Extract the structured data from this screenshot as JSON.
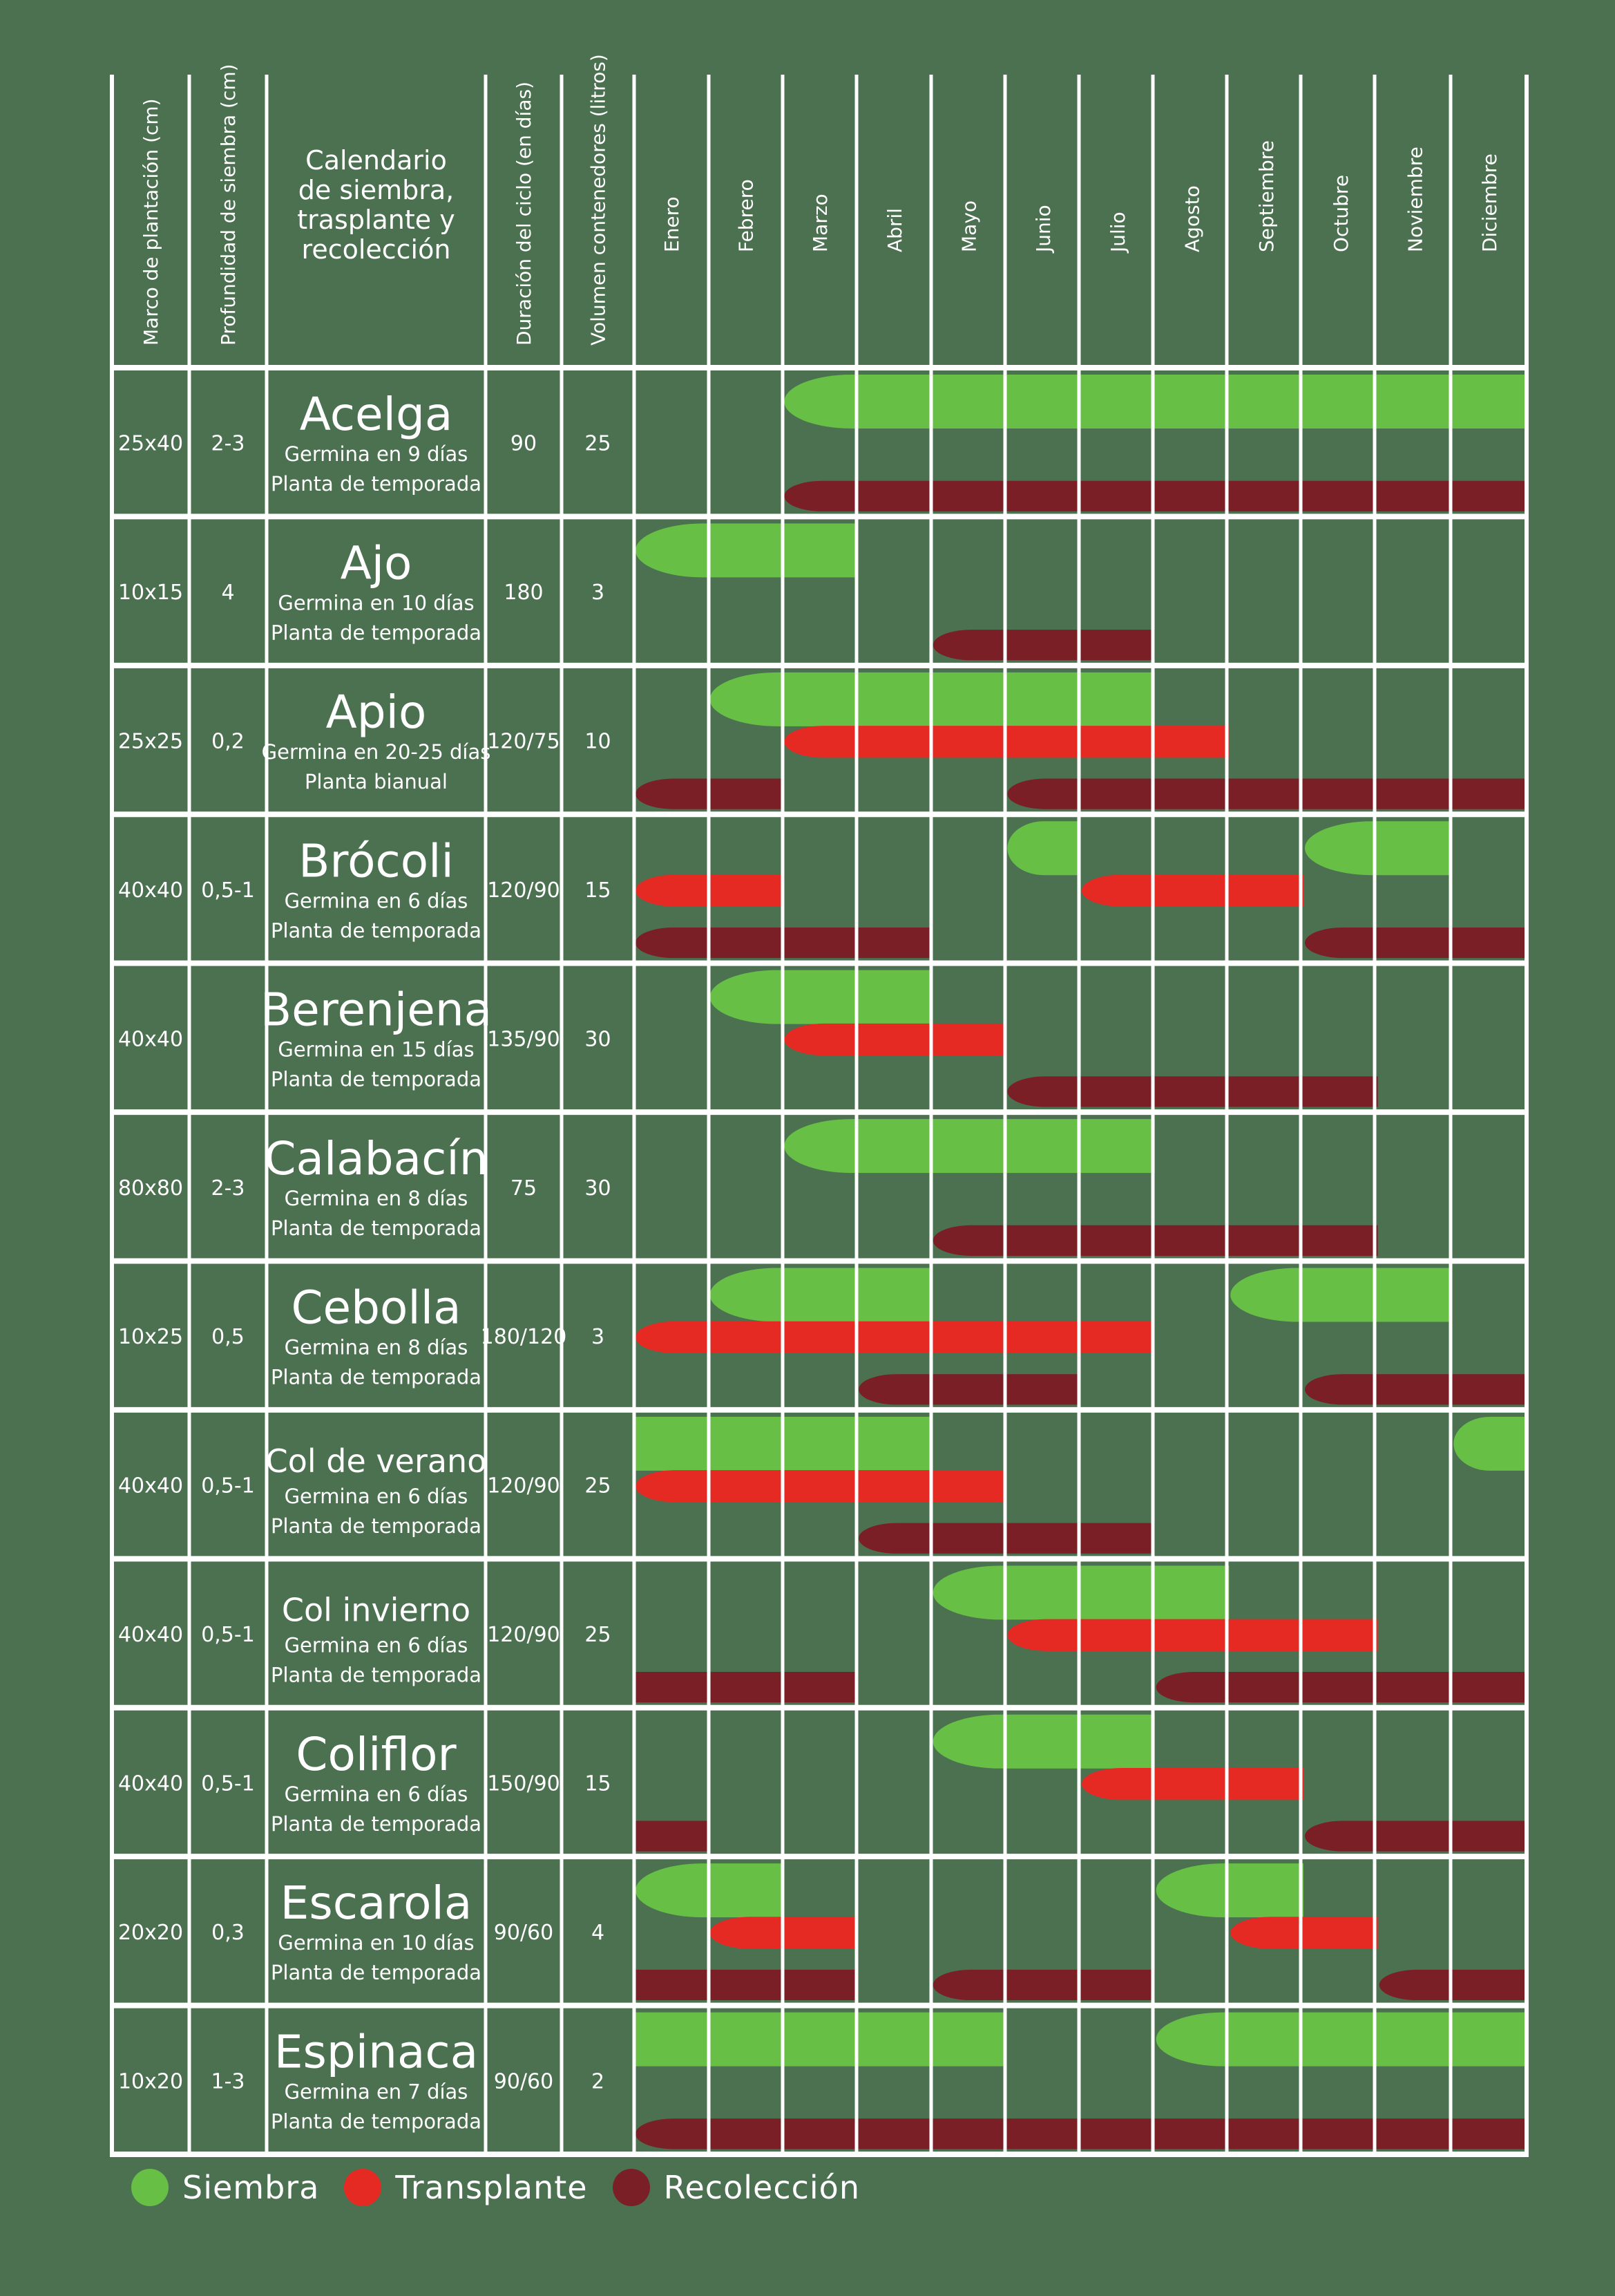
{
  "chart_data": {
    "type": "table",
    "title": "Calendario de siembra, trasplante y recolección",
    "columns": [
      "Marco de plantación (cm)",
      "Profundidad de siembra (cm)",
      "Calendario de siembra, trasplante y recolección",
      "Duración del ciclo (en días)",
      "Volumen contenedores (litros)"
    ],
    "months": [
      "Enero",
      "Febrero",
      "Marzo",
      "Abril",
      "Mayo",
      "Junio",
      "Julio",
      "Agosto",
      "Septiembre",
      "Octubre",
      "Noviembre",
      "Diciembre"
    ],
    "series_colors": {
      "Siembra": "#68bf45",
      "Transplante": "#e52a24",
      "Recolección": "#7a1f26"
    },
    "legend": [
      {
        "name": "Siembra",
        "color": "#68bf45"
      },
      {
        "name": "Transplante",
        "color": "#e52a24"
      },
      {
        "name": "Recolección",
        "color": "#7a1f26"
      }
    ],
    "rows": [
      {
        "name": "Acelga",
        "germina": "Germina en 9 días",
        "tipo": "Planta de temporada",
        "marco": "25x40",
        "profundidad": "2-3",
        "duracion": "90",
        "volumen": "25",
        "bands": [
          {
            "kind": "Siembra",
            "lane": 0,
            "start": 2,
            "end": 12,
            "round_start": true,
            "round_end": false
          },
          {
            "kind": "Recolección",
            "lane": 2,
            "start": 2,
            "end": 12,
            "round_start": true,
            "round_end": false
          }
        ]
      },
      {
        "name": "Ajo",
        "germina": "Germina en 10 días",
        "tipo": "Planta de temporada",
        "marco": "10x15",
        "profundidad": "4",
        "duracion": "180",
        "volumen": "3",
        "bands": [
          {
            "kind": "Siembra",
            "lane": 0,
            "start": 0,
            "end": 3,
            "round_start": true,
            "round_end": false
          },
          {
            "kind": "Recolección",
            "lane": 2,
            "start": 4,
            "end": 7,
            "round_start": true,
            "round_end": false
          }
        ]
      },
      {
        "name": "Apio",
        "germina": "Germina en 20-25 días",
        "tipo": "Planta bianual",
        "marco": "25x25",
        "profundidad": "0,2",
        "duracion": "120/75",
        "volumen": "10",
        "bands": [
          {
            "kind": "Siembra",
            "lane": 0,
            "start": 1,
            "end": 7,
            "round_start": true,
            "round_end": false
          },
          {
            "kind": "Transplante",
            "lane": 1,
            "start": 2,
            "end": 8,
            "round_start": true,
            "round_end": false
          },
          {
            "kind": "Recolección",
            "lane": 2,
            "start": 0,
            "end": 2,
            "round_start": true,
            "round_end": false
          },
          {
            "kind": "Recolección",
            "lane": 2,
            "start": 5,
            "end": 12,
            "round_start": true,
            "round_end": false
          }
        ]
      },
      {
        "name": "Brócoli",
        "germina": "Germina en 6 días",
        "tipo": "Planta de temporada",
        "marco": "40x40",
        "profundidad": "0,5-1",
        "duracion": "120/90",
        "volumen": "15",
        "bands": [
          {
            "kind": "Siembra",
            "lane": 0,
            "start": 5,
            "end": 6,
            "round_start": true,
            "round_end": false
          },
          {
            "kind": "Siembra",
            "lane": 0,
            "start": 9,
            "end": 11,
            "round_start": true,
            "round_end": false
          },
          {
            "kind": "Transplante",
            "lane": 1,
            "start": 0,
            "end": 2,
            "round_start": true,
            "round_end": false
          },
          {
            "kind": "Transplante",
            "lane": 1,
            "start": 6,
            "end": 9,
            "round_start": true,
            "round_end": false
          },
          {
            "kind": "Recolección",
            "lane": 2,
            "start": 0,
            "end": 4,
            "round_start": true,
            "round_end": false
          },
          {
            "kind": "Recolección",
            "lane": 2,
            "start": 9,
            "end": 12,
            "round_start": true,
            "round_end": false
          }
        ]
      },
      {
        "name": "Berenjena",
        "germina": "Germina en 15 días",
        "tipo": "Planta de temporada",
        "marco": "40x40",
        "profundidad": "",
        "duracion": "135/90",
        "volumen": "30",
        "bands": [
          {
            "kind": "Siembra",
            "lane": 0,
            "start": 1,
            "end": 4,
            "round_start": true,
            "round_end": false
          },
          {
            "kind": "Transplante",
            "lane": 1,
            "start": 2,
            "end": 5,
            "round_start": true,
            "round_end": false
          },
          {
            "kind": "Recolección",
            "lane": 2,
            "start": 5,
            "end": 10,
            "round_start": true,
            "round_end": false
          }
        ]
      },
      {
        "name": "Calabacín",
        "germina": "Germina en 8 días",
        "tipo": "Planta de temporada",
        "marco": "80x80",
        "profundidad": "2-3",
        "duracion": "75",
        "volumen": "30",
        "bands": [
          {
            "kind": "Siembra",
            "lane": 0,
            "start": 2,
            "end": 7,
            "round_start": true,
            "round_end": false
          },
          {
            "kind": "Recolección",
            "lane": 2,
            "start": 4,
            "end": 10,
            "round_start": true,
            "round_end": false
          }
        ]
      },
      {
        "name": "Cebolla",
        "germina": "Germina en 8 días",
        "tipo": "Planta de temporada",
        "marco": "10x25",
        "profundidad": "0,5",
        "duracion": "180/120",
        "volumen": "3",
        "bands": [
          {
            "kind": "Siembra",
            "lane": 0,
            "start": 1,
            "end": 4,
            "round_start": true,
            "round_end": false
          },
          {
            "kind": "Siembra",
            "lane": 0,
            "start": 8,
            "end": 11,
            "round_start": true,
            "round_end": false
          },
          {
            "kind": "Transplante",
            "lane": 1,
            "start": 0,
            "end": 7,
            "round_start": true,
            "round_end": false
          },
          {
            "kind": "Recolección",
            "lane": 2,
            "start": 3,
            "end": 6,
            "round_start": true,
            "round_end": false
          },
          {
            "kind": "Recolección",
            "lane": 2,
            "start": 9,
            "end": 12,
            "round_start": true,
            "round_end": false
          }
        ]
      },
      {
        "name": "Col de verano",
        "germina": "Germina en 6 días",
        "tipo": "Planta de temporada",
        "marco": "40x40",
        "profundidad": "0,5-1",
        "duracion": "120/90",
        "volumen": "25",
        "bands": [
          {
            "kind": "Siembra",
            "lane": 0,
            "start": 0,
            "end": 4,
            "round_start": false,
            "round_end": false
          },
          {
            "kind": "Siembra",
            "lane": 0,
            "start": 11,
            "end": 12,
            "round_start": true,
            "round_end": false
          },
          {
            "kind": "Transplante",
            "lane": 1,
            "start": 0,
            "end": 5,
            "round_start": true,
            "round_end": false
          },
          {
            "kind": "Recolección",
            "lane": 2,
            "start": 3,
            "end": 7,
            "round_start": true,
            "round_end": false
          }
        ]
      },
      {
        "name": "Col invierno",
        "germina": "Germina en 6 días",
        "tipo": "Planta de temporada",
        "marco": "40x40",
        "profundidad": "0,5-1",
        "duracion": "120/90",
        "volumen": "25",
        "bands": [
          {
            "kind": "Siembra",
            "lane": 0,
            "start": 4,
            "end": 8,
            "round_start": true,
            "round_end": false
          },
          {
            "kind": "Transplante",
            "lane": 1,
            "start": 5,
            "end": 10,
            "round_start": true,
            "round_end": false
          },
          {
            "kind": "Recolección",
            "lane": 2,
            "start": 0,
            "end": 3,
            "round_start": false,
            "round_end": false
          },
          {
            "kind": "Recolección",
            "lane": 2,
            "start": 7,
            "end": 12,
            "round_start": true,
            "round_end": false
          }
        ]
      },
      {
        "name": "Coliflor",
        "germina": "Germina en 6 días",
        "tipo": "Planta de temporada",
        "marco": "40x40",
        "profundidad": "0,5-1",
        "duracion": "150/90",
        "volumen": "15",
        "bands": [
          {
            "kind": "Siembra",
            "lane": 0,
            "start": 4,
            "end": 7,
            "round_start": true,
            "round_end": false
          },
          {
            "kind": "Transplante",
            "lane": 1,
            "start": 6,
            "end": 9,
            "round_start": true,
            "round_end": false
          },
          {
            "kind": "Recolección",
            "lane": 2,
            "start": 0,
            "end": 1,
            "round_start": false,
            "round_end": false
          },
          {
            "kind": "Recolección",
            "lane": 2,
            "start": 9,
            "end": 12,
            "round_start": true,
            "round_end": false
          }
        ]
      },
      {
        "name": "Escarola",
        "germina": "Germina en 10 días",
        "tipo": "Planta de temporada",
        "marco": "20x20",
        "profundidad": "0,3",
        "duracion": "90/60",
        "volumen": "4",
        "bands": [
          {
            "kind": "Siembra",
            "lane": 0,
            "start": 0,
            "end": 2,
            "round_start": true,
            "round_end": false
          },
          {
            "kind": "Siembra",
            "lane": 0,
            "start": 7,
            "end": 9,
            "round_start": true,
            "round_end": false
          },
          {
            "kind": "Transplante",
            "lane": 1,
            "start": 1,
            "end": 3,
            "round_start": true,
            "round_end": false
          },
          {
            "kind": "Transplante",
            "lane": 1,
            "start": 8,
            "end": 10,
            "round_start": true,
            "round_end": false
          },
          {
            "kind": "Recolección",
            "lane": 2,
            "start": 0,
            "end": 3,
            "round_start": false,
            "round_end": false
          },
          {
            "kind": "Recolección",
            "lane": 2,
            "start": 4,
            "end": 7,
            "round_start": true,
            "round_end": false
          },
          {
            "kind": "Recolección",
            "lane": 2,
            "start": 10,
            "end": 12,
            "round_start": true,
            "round_end": false
          }
        ]
      },
      {
        "name": "Espinaca",
        "germina": "Germina en 7 días",
        "tipo": "Planta de temporada",
        "marco": "10x20",
        "profundidad": "1-3",
        "duracion": "90/60",
        "volumen": "2",
        "bands": [
          {
            "kind": "Siembra",
            "lane": 0,
            "start": 0,
            "end": 5,
            "round_start": false,
            "round_end": false
          },
          {
            "kind": "Siembra",
            "lane": 0,
            "start": 7,
            "end": 12,
            "round_start": true,
            "round_end": false
          },
          {
            "kind": "Recolección",
            "lane": 2,
            "start": 0,
            "end": 12,
            "round_start": true,
            "round_end": false
          }
        ]
      }
    ]
  }
}
